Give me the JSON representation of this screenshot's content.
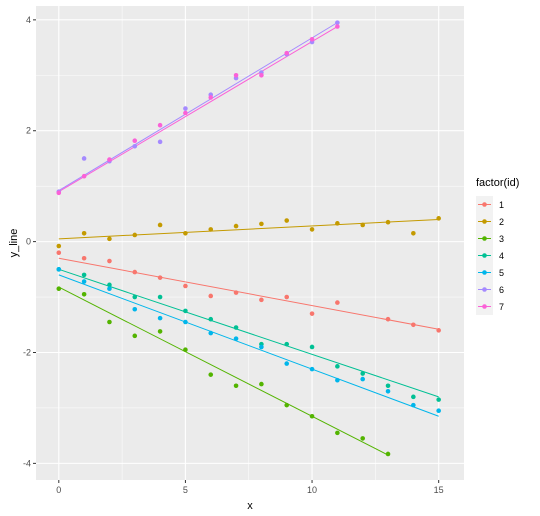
{
  "chart_data": {
    "type": "scatter",
    "xlabel": "x",
    "ylabel": "y_line",
    "xlim": [
      -0.9,
      16.0
    ],
    "ylim": [
      -4.3,
      4.25
    ],
    "xticks": [
      0,
      5,
      10,
      15
    ],
    "yticks": [
      -4,
      -2,
      0,
      2,
      4
    ],
    "grid": true,
    "panel_background": "#ebebeb",
    "legend": {
      "title": "factor(id)",
      "placement": "right",
      "entries": [
        "1",
        "2",
        "3",
        "4",
        "5",
        "6",
        "7"
      ]
    },
    "series": [
      {
        "name": "1",
        "color": "#F8766D",
        "points": [
          [
            0,
            -0.2
          ],
          [
            1,
            -0.3
          ],
          [
            2,
            -0.35
          ],
          [
            3,
            -0.55
          ],
          [
            4,
            -0.65
          ],
          [
            5,
            -0.8
          ],
          [
            6,
            -0.98
          ],
          [
            7,
            -0.92
          ],
          [
            8,
            -1.05
          ],
          [
            9,
            -1.0
          ],
          [
            10,
            -1.3
          ],
          [
            11,
            -1.1
          ],
          [
            13,
            -1.4
          ],
          [
            14,
            -1.5
          ],
          [
            15,
            -1.6
          ]
        ],
        "fit": [
          [
            0,
            -0.3
          ],
          [
            15,
            -1.58
          ]
        ]
      },
      {
        "name": "2",
        "color": "#C49A00",
        "points": [
          [
            0,
            -0.08
          ],
          [
            1,
            0.15
          ],
          [
            2,
            0.05
          ],
          [
            3,
            0.12
          ],
          [
            4,
            0.3
          ],
          [
            5,
            0.15
          ],
          [
            6,
            0.22
          ],
          [
            7,
            0.28
          ],
          [
            8,
            0.32
          ],
          [
            9,
            0.38
          ],
          [
            10,
            0.22
          ],
          [
            11,
            0.33
          ],
          [
            12,
            0.3
          ],
          [
            13,
            0.35
          ],
          [
            14,
            0.15
          ],
          [
            15,
            0.42
          ]
        ],
        "fit": [
          [
            0,
            0.05
          ],
          [
            15,
            0.4
          ]
        ]
      },
      {
        "name": "3",
        "color": "#53B400",
        "points": [
          [
            0,
            -0.85
          ],
          [
            1,
            -0.95
          ],
          [
            2,
            -1.45
          ],
          [
            3,
            -1.7
          ],
          [
            4,
            -1.62
          ],
          [
            5,
            -1.95
          ],
          [
            6,
            -2.4
          ],
          [
            7,
            -2.6
          ],
          [
            8,
            -2.57
          ],
          [
            9,
            -2.95
          ],
          [
            10,
            -3.15
          ],
          [
            11,
            -3.45
          ],
          [
            12,
            -3.55
          ],
          [
            13,
            -3.83
          ]
        ],
        "fit": [
          [
            0,
            -0.82
          ],
          [
            13,
            -3.85
          ]
        ]
      },
      {
        "name": "4",
        "color": "#00C094",
        "points": [
          [
            0,
            -0.5
          ],
          [
            1,
            -0.6
          ],
          [
            2,
            -0.78
          ],
          [
            3,
            -1.0
          ],
          [
            4,
            -1.0
          ],
          [
            5,
            -1.25
          ],
          [
            6,
            -1.4
          ],
          [
            7,
            -1.55
          ],
          [
            8,
            -1.85
          ],
          [
            9,
            -1.85
          ],
          [
            10,
            -1.9
          ],
          [
            11,
            -2.25
          ],
          [
            12,
            -2.38
          ],
          [
            13,
            -2.6
          ],
          [
            14,
            -2.8
          ],
          [
            15,
            -2.85
          ]
        ],
        "fit": [
          [
            0,
            -0.5
          ],
          [
            15,
            -2.8
          ]
        ]
      },
      {
        "name": "5",
        "color": "#00B6EB",
        "points": [
          [
            0,
            -0.5
          ],
          [
            1,
            -0.72
          ],
          [
            2,
            -0.85
          ],
          [
            3,
            -1.22
          ],
          [
            4,
            -1.38
          ],
          [
            5,
            -1.45
          ],
          [
            6,
            -1.65
          ],
          [
            7,
            -1.75
          ],
          [
            8,
            -1.9
          ],
          [
            9,
            -2.2
          ],
          [
            10,
            -2.3
          ],
          [
            11,
            -2.5
          ],
          [
            12,
            -2.48
          ],
          [
            13,
            -2.7
          ],
          [
            14,
            -2.95
          ],
          [
            15,
            -3.05
          ]
        ],
        "fit": [
          [
            0,
            -0.6
          ],
          [
            15,
            -3.15
          ]
        ]
      },
      {
        "name": "6",
        "color": "#A58AFF",
        "points": [
          [
            0,
            0.9
          ],
          [
            1,
            1.5
          ],
          [
            2,
            1.45
          ],
          [
            3,
            1.72
          ],
          [
            4,
            1.8
          ],
          [
            5,
            2.4
          ],
          [
            6,
            2.65
          ],
          [
            7,
            2.95
          ],
          [
            8,
            3.05
          ],
          [
            9,
            3.38
          ],
          [
            10,
            3.6
          ],
          [
            11,
            3.95
          ]
        ],
        "fit": [
          [
            0,
            0.92
          ],
          [
            11,
            3.95
          ]
        ]
      },
      {
        "name": "7",
        "color": "#FB61D7",
        "points": [
          [
            0,
            0.88
          ],
          [
            1,
            1.18
          ],
          [
            2,
            1.48
          ],
          [
            3,
            1.82
          ],
          [
            4,
            2.1
          ],
          [
            5,
            2.32
          ],
          [
            6,
            2.6
          ],
          [
            7,
            3.0
          ],
          [
            8,
            3.0
          ],
          [
            9,
            3.4
          ],
          [
            10,
            3.65
          ],
          [
            11,
            3.88
          ]
        ],
        "fit": [
          [
            0,
            0.9
          ],
          [
            11,
            3.88
          ]
        ]
      }
    ]
  }
}
